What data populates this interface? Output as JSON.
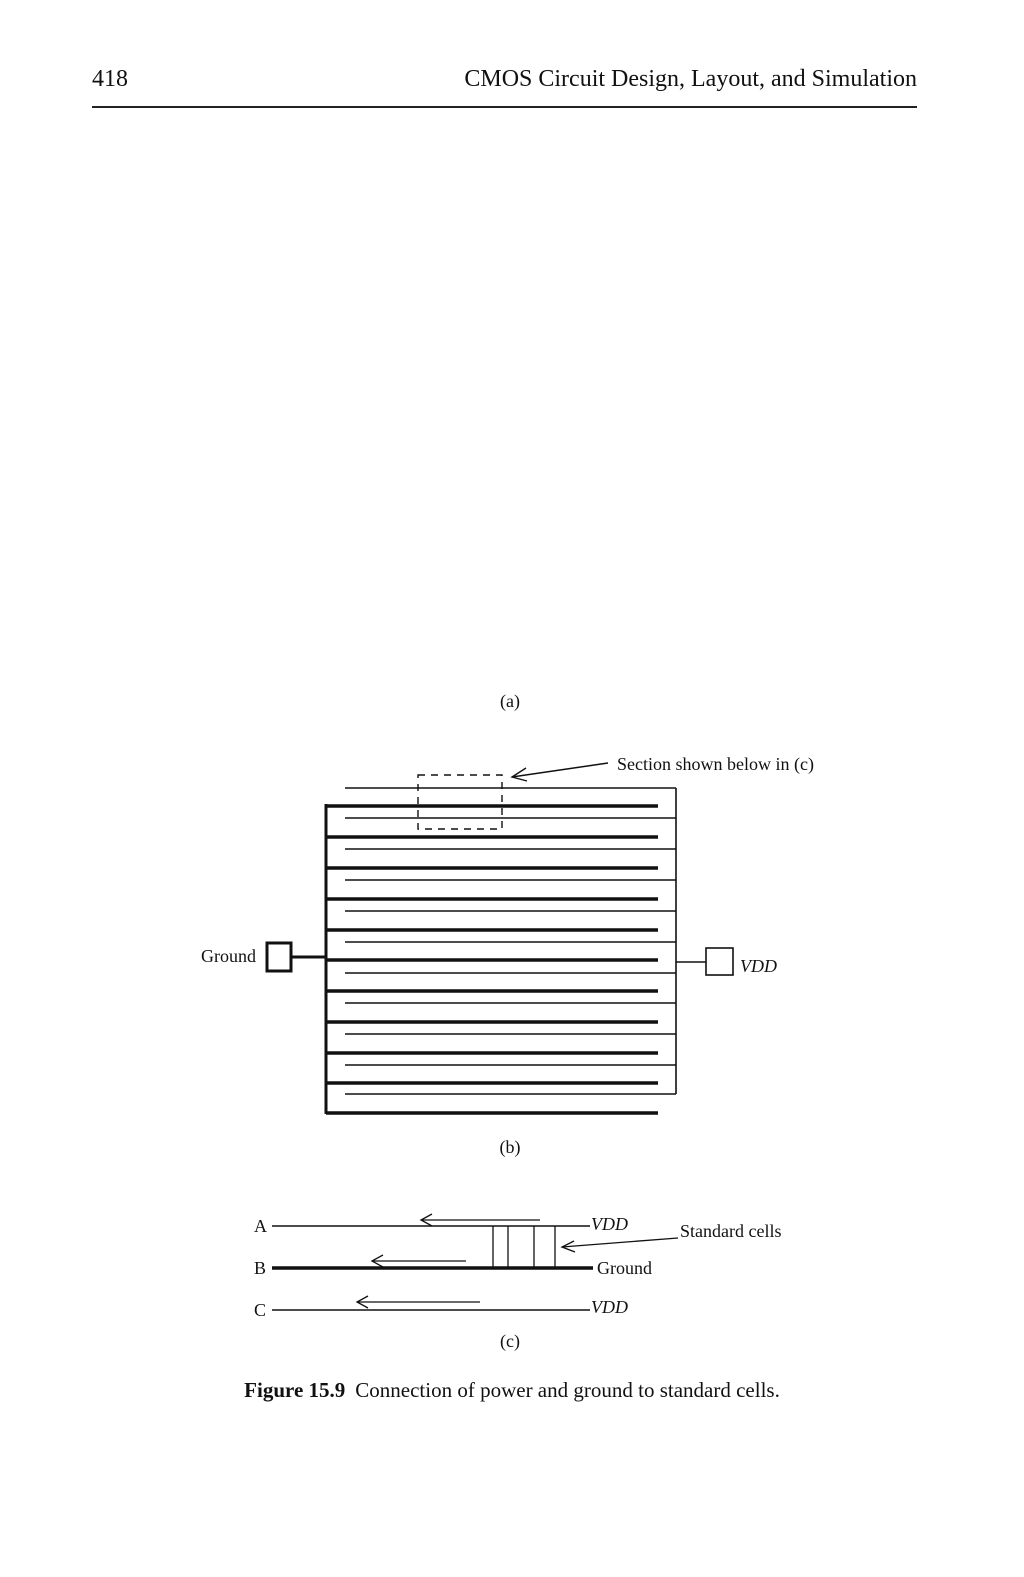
{
  "header": {
    "page_number": "418",
    "running_title": "CMOS Circuit Design, Layout, and Simulation"
  },
  "figure": {
    "panel_a_label": "(a)",
    "panel_b_label": "(b)",
    "panel_c_label": "(c)",
    "panel_b": {
      "section_note": "Section shown below in (c)",
      "ground_label": "Ground",
      "vdd_label": "VDD"
    },
    "panel_c": {
      "rail_a": "A",
      "rail_b": "B",
      "rail_c": "C",
      "rail_a_label": "VDD",
      "rail_b_label": "Ground",
      "rail_c_label": "VDD",
      "cells_label": "Standard cells"
    },
    "caption_number": "Figure 15.9",
    "caption_text": "Connection of power and ground to standard cells."
  }
}
